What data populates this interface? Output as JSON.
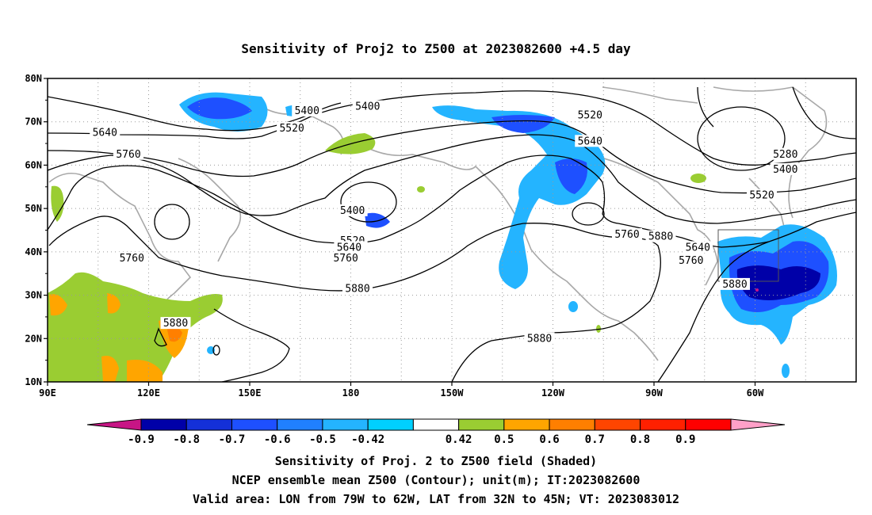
{
  "title": "Sensitivity of Proj2 to Z500 at 2023082600 +4.5 day",
  "lat_ticks": [
    "80N",
    "70N",
    "60N",
    "50N",
    "40N",
    "30N",
    "20N",
    "10N"
  ],
  "lon_ticks": [
    "90E",
    "120E",
    "150E",
    "180",
    "150W",
    "120W",
    "90W",
    "60W"
  ],
  "contour_labels": [
    {
      "text": "5400",
      "lon": 167,
      "lat": 72.5
    },
    {
      "text": "5520",
      "lon": 162.5,
      "lat": 68.5
    },
    {
      "text": "5640",
      "lon": 107,
      "lat": 67.5
    },
    {
      "text": "5760",
      "lon": 114,
      "lat": 62.5
    },
    {
      "text": "5400",
      "lon": 185,
      "lat": 73.5
    },
    {
      "text": "5520",
      "lon": 251,
      "lat": 71.5
    },
    {
      "text": "5640",
      "lon": 251,
      "lat": 65.5
    },
    {
      "text": "5400",
      "lon": 180.5,
      "lat": 49.5
    },
    {
      "text": "5520",
      "lon": 180.5,
      "lat": 42.5
    },
    {
      "text": "5640",
      "lon": 179.5,
      "lat": 41
    },
    {
      "text": "5760",
      "lon": 178.5,
      "lat": 38.5
    },
    {
      "text": "5880",
      "lon": 182,
      "lat": 31.5
    },
    {
      "text": "5760",
      "lon": 115,
      "lat": 38.5
    },
    {
      "text": "5880",
      "lon": 128,
      "lat": 23.5
    },
    {
      "text": "5760",
      "lon": 262,
      "lat": 44
    },
    {
      "text": "5880",
      "lon": 272,
      "lat": 43.5
    },
    {
      "text": "5880",
      "lon": 236,
      "lat": 20
    },
    {
      "text": "5280",
      "lon": 309,
      "lat": 62.5
    },
    {
      "text": "5400",
      "lon": 309,
      "lat": 59
    },
    {
      "text": "5520",
      "lon": 302,
      "lat": 53
    },
    {
      "text": "5640",
      "lon": 283,
      "lat": 41
    },
    {
      "text": "5760",
      "lon": 281,
      "lat": 38
    },
    {
      "text": "5880",
      "lon": 294,
      "lat": 32.5
    }
  ],
  "colorbar": {
    "labels": [
      "-0.9",
      "-0.8",
      "-0.7",
      "-0.6",
      "-0.5",
      "-0.42",
      "0.42",
      "0.5",
      "0.6",
      "0.7",
      "0.8",
      "0.9"
    ],
    "colors": [
      "#c71585",
      "#0000a8",
      "#1430d8",
      "#1e50ff",
      "#2080ff",
      "#24b4ff",
      "#00d0ff",
      "#ffffff",
      "#9acd32",
      "#ffa500",
      "#ff7f00",
      "#ff4500",
      "#ff2000",
      "#ff0000",
      "#ffa0c8"
    ]
  },
  "caption": {
    "line1": "Sensitivity of Proj. 2 to Z500 field (Shaded)",
    "line2": "NCEP ensemble mean Z500 (Contour); unit(m); IT:2023082600",
    "line3": "Valid area: LON from 79W to 62W, LAT from 32N to 45N; VT: 2023083012"
  }
}
